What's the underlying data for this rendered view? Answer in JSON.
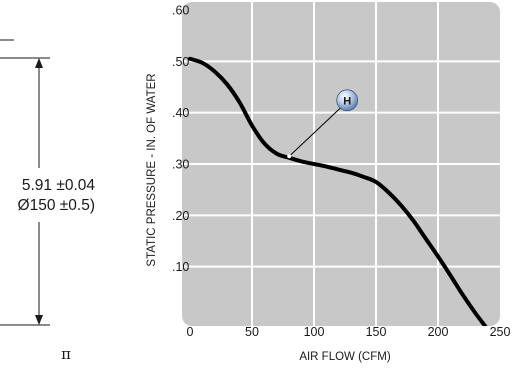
{
  "drawing": {
    "dimension_inch": "5.91 ±0.04",
    "dimension_mm": "Ø150 ±0.5)",
    "symbol": "π"
  },
  "chart_data": {
    "type": "line",
    "title": "",
    "xlabel": "AIR FLOW (CFM)",
    "ylabel": "STATIC PRESSURE - IN. OF WATER",
    "xlim": [
      0,
      250
    ],
    "ylim": [
      0,
      0.6
    ],
    "x_ticks": [
      0,
      50,
      100,
      150,
      200,
      250
    ],
    "x_tick_labels": [
      "0",
      "50",
      "100",
      "150",
      "200",
      "250"
    ],
    "y_ticks": [
      0.1,
      0.2,
      0.3,
      0.4,
      0.5,
      0.6
    ],
    "y_tick_labels": [
      ".10",
      ".20",
      ".30",
      ".40",
      ".50",
      ".60"
    ],
    "grid": true,
    "series": [
      {
        "label": "H",
        "color": "#000000",
        "x": [
          0,
          10,
          20,
          30,
          40,
          50,
          60,
          70,
          80,
          90,
          100,
          110,
          120,
          130,
          140,
          150,
          160,
          170,
          180,
          190,
          200,
          210,
          220,
          230,
          240
        ],
        "y": [
          0.505,
          0.497,
          0.48,
          0.455,
          0.42,
          0.375,
          0.34,
          0.32,
          0.312,
          0.305,
          0.3,
          0.295,
          0.289,
          0.283,
          0.275,
          0.265,
          0.245,
          0.22,
          0.19,
          0.155,
          0.12,
          0.083,
          0.045,
          0.01,
          -0.022
        ]
      }
    ],
    "annotations": [
      {
        "text": "H",
        "x": 80,
        "y": 0.315
      }
    ]
  }
}
